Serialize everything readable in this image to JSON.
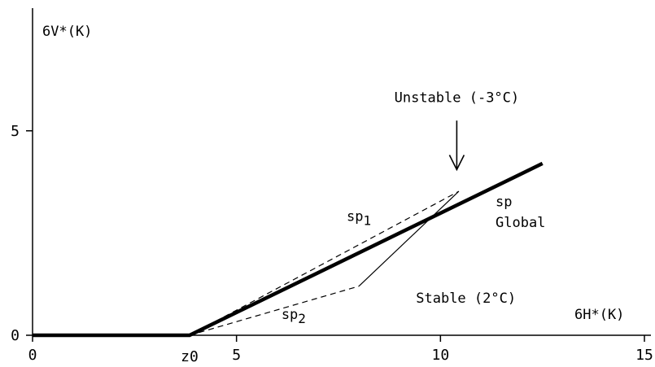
{
  "chart_data": {
    "type": "line",
    "xlabel": "6H*(K)",
    "ylabel": "6V*(K)",
    "xlim": [
      0,
      15
    ],
    "ylim": [
      0,
      8
    ],
    "x_ticks": [
      {
        "value": 0,
        "label": "0"
      },
      {
        "value": 5,
        "label": "5"
      },
      {
        "value": 10,
        "label": "10"
      },
      {
        "value": 15,
        "label": "15"
      }
    ],
    "y_ticks": [
      {
        "value": 0,
        "label": "0"
      },
      {
        "value": 5,
        "label": "5"
      }
    ],
    "z0": {
      "x": 3.85,
      "label": "z0"
    },
    "series": [
      {
        "key": "global",
        "style": "thick",
        "points": [
          [
            0,
            0
          ],
          [
            3.85,
            0
          ],
          [
            12.5,
            4.2
          ]
        ]
      },
      {
        "key": "sp1",
        "style": "dashed",
        "points": [
          [
            3.85,
            0
          ],
          [
            10.45,
            3.52
          ]
        ]
      },
      {
        "key": "sp2",
        "style": "dashed",
        "points": [
          [
            3.85,
            0
          ],
          [
            8.0,
            1.2
          ]
        ]
      },
      {
        "key": "unstable_to_stable",
        "style": "thin",
        "points": [
          [
            8.0,
            1.2
          ],
          [
            10.45,
            3.52
          ]
        ]
      }
    ],
    "annotations": {
      "unstable": {
        "text": "Unstable (-3°C)",
        "x": 10.4,
        "y": 5.7
      },
      "stable": {
        "text": "Stable (2°C)",
        "x": 9.4,
        "y": 0.8
      },
      "sp1": {
        "text": "sp",
        "sub": "1",
        "x": 7.7,
        "y": 2.8
      },
      "sp2": {
        "text": "sp",
        "sub": "2",
        "x": 6.1,
        "y": 0.4
      },
      "sp_global_line1": {
        "text": "sp",
        "x": 11.35,
        "y": 3.15
      },
      "sp_global_line2": {
        "text": "Global",
        "x": 11.35,
        "y": 2.65
      }
    },
    "arrow": {
      "x": 10.4,
      "y_from": 5.25,
      "y_to": 4.05
    }
  }
}
